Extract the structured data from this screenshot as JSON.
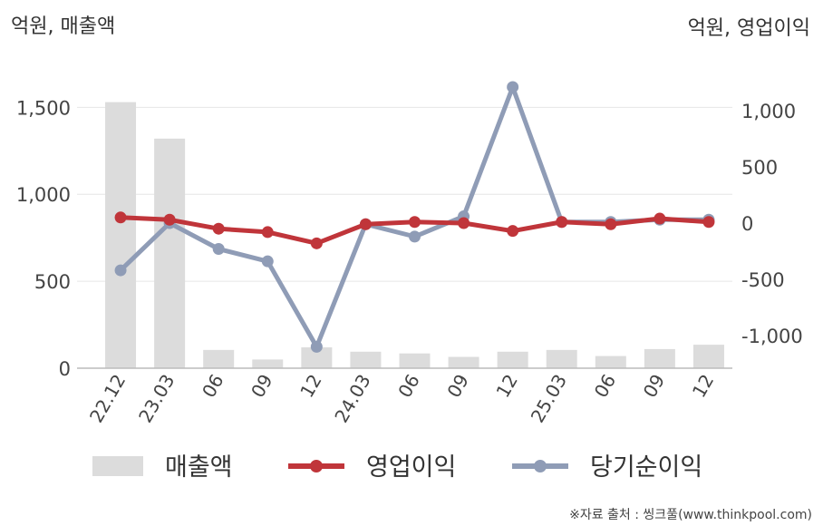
{
  "chart_data": {
    "type": "bar+line",
    "left_axis_label": "억원, 매출액",
    "right_axis_label": "억원, 영업이익",
    "categories": [
      "22.12",
      "23.03",
      "06",
      "09",
      "12",
      "24.03",
      "06",
      "09",
      "12",
      "25.03",
      "06",
      "09",
      "12"
    ],
    "left_axis": {
      "min": 0,
      "max": 1700,
      "ticks": [
        0,
        500,
        1000,
        1500
      ],
      "tick_labels": [
        "0",
        "500",
        "1,000",
        "1,500"
      ]
    },
    "right_axis": {
      "min": -1300,
      "max": 1300,
      "ticks": [
        -1000,
        -500,
        0,
        500,
        1000
      ],
      "tick_labels": [
        "-1,000",
        "-500",
        "0",
        "500",
        "1,000"
      ]
    },
    "series": [
      {
        "name": "매출액",
        "type": "bar",
        "axis": "left",
        "color": "#dcdcdc",
        "values": [
          1530,
          1320,
          105,
          50,
          120,
          95,
          85,
          65,
          95,
          105,
          70,
          110,
          135
        ]
      },
      {
        "name": "영업이익",
        "type": "line",
        "axis": "right",
        "color": "#c0353a",
        "values": [
          50,
          30,
          -50,
          -80,
          -180,
          -10,
          10,
          0,
          -70,
          10,
          -10,
          40,
          10
        ]
      },
      {
        "name": "당기순이익",
        "type": "line",
        "axis": "right",
        "color": "#8f9cb6",
        "values": [
          -420,
          0,
          -230,
          -340,
          -1100,
          -10,
          -120,
          60,
          1210,
          10,
          10,
          30,
          30
        ]
      }
    ],
    "legend_placement": "bottom",
    "grid": true
  },
  "source_text": "※자료 출처 : 씽크풀(www.thinkpool.com)"
}
